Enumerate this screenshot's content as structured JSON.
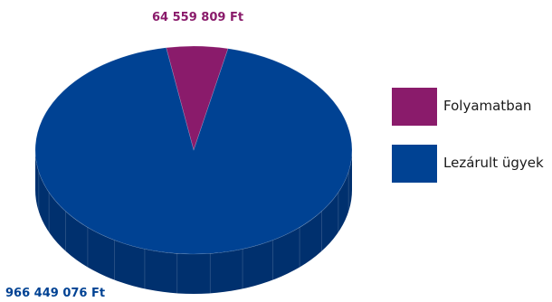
{
  "chart_data": {
    "type": "pie",
    "style": "3d",
    "title": "",
    "categories": [
      "Folyamatban",
      "Lezárult ügyek"
    ],
    "values": [
      64559809,
      966449076
    ],
    "data_labels": [
      "64 559 809 Ft",
      "966 449 076 Ft"
    ],
    "unit": "Ft",
    "colors": [
      "#8a1b6b",
      "#004293"
    ],
    "legend_position": "right"
  }
}
